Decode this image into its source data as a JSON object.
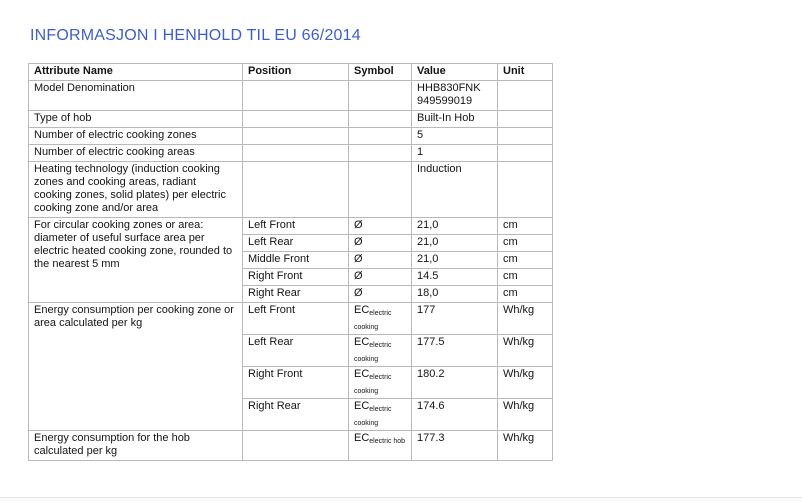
{
  "page": {
    "title": "INFORMASJON I HENHOLD TIL EU 66/2014",
    "accent_color": "#3d5ec6",
    "border_color": "#b9b9b9"
  },
  "table": {
    "headers": [
      "Attribute Name",
      "Position",
      "Symbol",
      "Value",
      "Unit"
    ],
    "groups": [
      {
        "attribute": "Model Denomination",
        "rows": [
          {
            "position": "",
            "symbol": null,
            "value": "HHB830FNK\n949599019",
            "unit": ""
          }
        ]
      },
      {
        "attribute": "Type of hob",
        "rows": [
          {
            "position": "",
            "symbol": null,
            "value": "Built-In Hob",
            "unit": ""
          }
        ]
      },
      {
        "attribute": "Number of electric cooking zones",
        "rows": [
          {
            "position": "",
            "symbol": null,
            "value": "5",
            "unit": ""
          }
        ]
      },
      {
        "attribute": "Number of electric cooking areas",
        "rows": [
          {
            "position": "",
            "symbol": null,
            "value": "1",
            "unit": ""
          }
        ]
      },
      {
        "attribute": "Heating technology (induction cooking zones and cooking areas, radiant cooking zones, solid plates) per electric cooking zone and/or area",
        "rows": [
          {
            "position": "",
            "symbol": null,
            "value": "Induction",
            "unit": ""
          }
        ]
      },
      {
        "attribute": "For circular cooking zones or area: diameter of useful surface area per electric heated cooking zone, rounded to the nearest 5 mm",
        "rows": [
          {
            "position": "Left Front",
            "symbol": {
              "base": "Ø",
              "sub": ""
            },
            "value": "21,0",
            "unit": "cm"
          },
          {
            "position": "Left Rear",
            "symbol": {
              "base": "Ø",
              "sub": ""
            },
            "value": "21,0",
            "unit": "cm"
          },
          {
            "position": "Middle Front",
            "symbol": {
              "base": "Ø",
              "sub": ""
            },
            "value": "21,0",
            "unit": "cm"
          },
          {
            "position": "Right Front",
            "symbol": {
              "base": "Ø",
              "sub": ""
            },
            "value": "14.5",
            "unit": "cm"
          },
          {
            "position": "Right Rear",
            "symbol": {
              "base": "Ø",
              "sub": ""
            },
            "value": "18,0",
            "unit": "cm"
          }
        ]
      },
      {
        "attribute": "Energy consumption per cooking zone or area calculated per kg",
        "rows": [
          {
            "position": "Left Front",
            "symbol": {
              "base": "EC",
              "sub": "electric cooking"
            },
            "value": "177",
            "unit": "Wh/kg"
          },
          {
            "position": "Left Rear",
            "symbol": {
              "base": "EC",
              "sub": "electric cooking"
            },
            "value": "177.5",
            "unit": "Wh/kg"
          },
          {
            "position": "Right Front",
            "symbol": {
              "base": "EC",
              "sub": "electric cooking"
            },
            "value": "180.2",
            "unit": "Wh/kg"
          },
          {
            "position": "Right Rear",
            "symbol": {
              "base": "EC",
              "sub": "electric cooking"
            },
            "value": "174.6",
            "unit": "Wh/kg"
          }
        ]
      },
      {
        "attribute": "Energy consumption for the hob calculated per kg",
        "rows": [
          {
            "position": "",
            "symbol": {
              "base": "EC",
              "sub": "electric hob"
            },
            "value": "177.3",
            "unit": "Wh/kg"
          }
        ]
      }
    ]
  }
}
